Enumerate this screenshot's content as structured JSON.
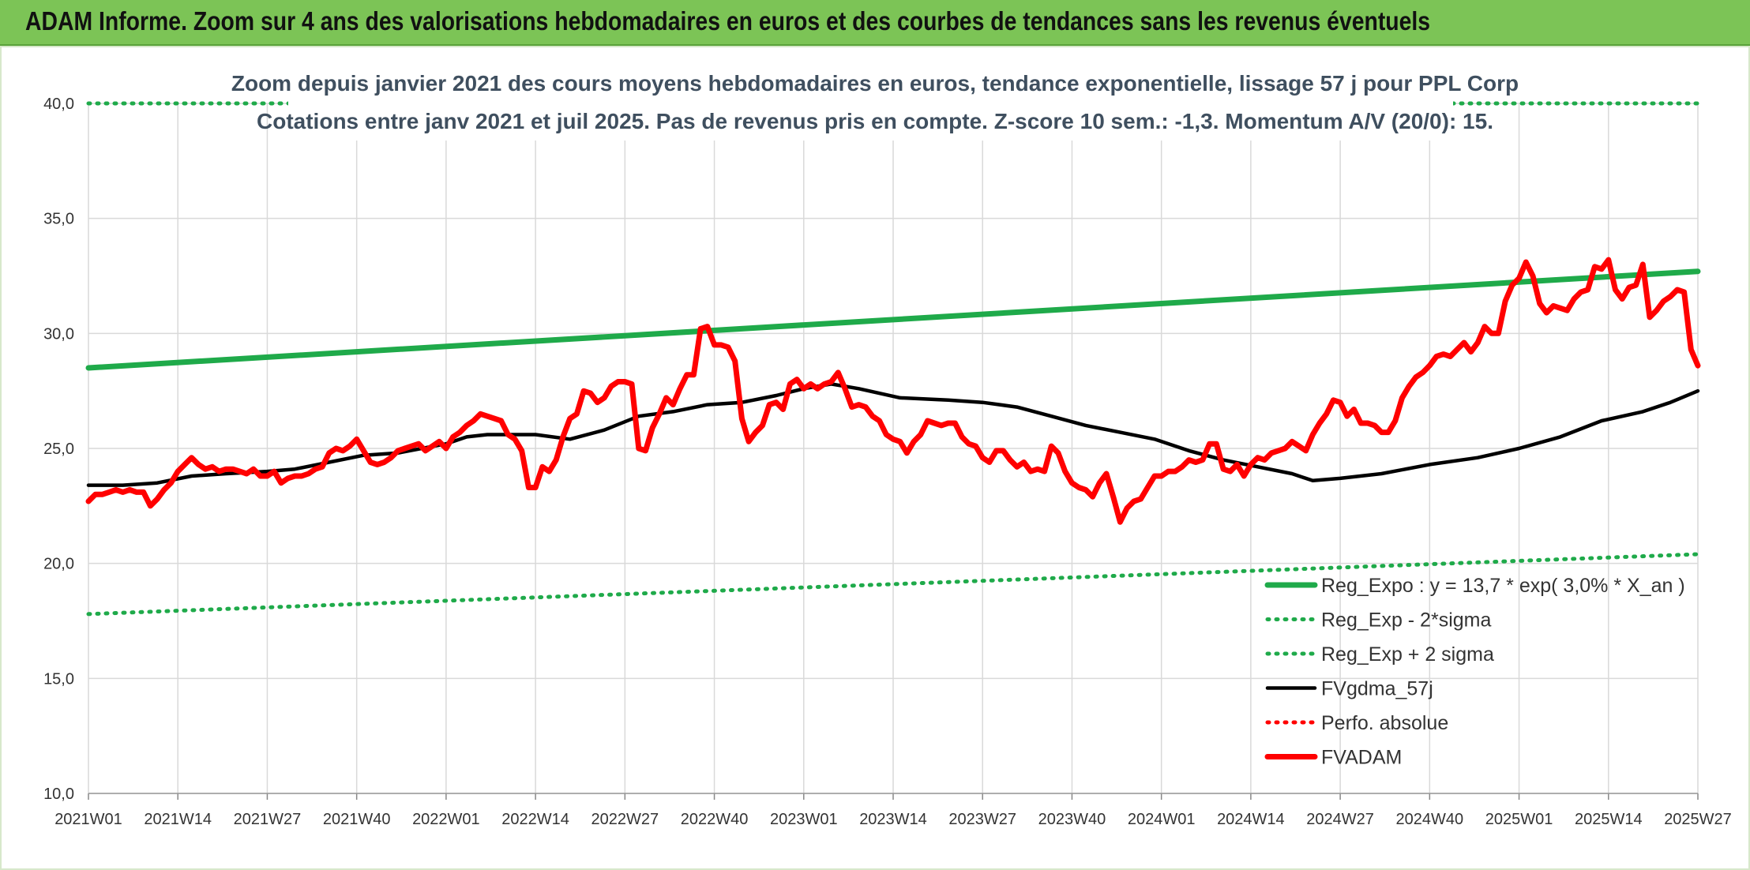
{
  "banner": {
    "title": "ADAM Informe. Zoom sur 4 ans des valorisations hebdomadaires en euros et des courbes de tendances sans les revenus éventuels"
  },
  "colors": {
    "banner": "#7cc456",
    "trend": "#1faa4a",
    "smoothed": "#000000",
    "price": "#ff0000",
    "grid": "#d9d9d9"
  },
  "chart_data": {
    "type": "line",
    "title": [
      "Zoom depuis janvier 2021 des cours moyens hebdomadaires en euros, tendance exponentielle, lissage 57 j pour PPL Corp",
      "Cotations entre janv 2021 et juil 2025. Pas de revenus pris en compte. Z-score 10 sem.: -1,3. Momentum A/V (20/0): 15."
    ],
    "ylim": [
      10,
      40
    ],
    "yticks": [
      "10,0",
      "15,0",
      "20,0",
      "25,0",
      "30,0",
      "35,0",
      "40,0"
    ],
    "xticks": [
      "2021W01",
      "2021W14",
      "2021W27",
      "2021W40",
      "2022W01",
      "2022W14",
      "2022W27",
      "2022W40",
      "2023W01",
      "2023W14",
      "2023W27",
      "2023W40",
      "2024W01",
      "2024W14",
      "2024W27",
      "2024W40",
      "2025W01",
      "2025W14",
      "2025W27"
    ],
    "x_range_weeks": [
      0,
      234
    ],
    "grid": true,
    "legend_position": "bottom-right",
    "series": [
      {
        "name": "Reg_Expo : y = 13,7 * exp( 3,0% *  X_an )",
        "style": "solid-thick",
        "color": "#1faa4a",
        "points": [
          [
            0,
            28.5
          ],
          [
            234,
            32.7
          ]
        ]
      },
      {
        "name": "Reg_Exp - 2*sigma",
        "style": "dotted",
        "color": "#1faa4a",
        "points": [
          [
            0,
            17.8
          ],
          [
            234,
            20.4
          ]
        ]
      },
      {
        "name": "Reg_Exp + 2 sigma",
        "style": "dotted",
        "color": "#1faa4a",
        "points": [
          [
            0,
            40.0
          ],
          [
            234,
            40.0
          ]
        ]
      },
      {
        "name": "FVgdma_57j",
        "style": "solid",
        "color": "#000000",
        "points": [
          [
            0,
            23.4
          ],
          [
            5,
            23.4
          ],
          [
            10,
            23.5
          ],
          [
            15,
            23.8
          ],
          [
            20,
            23.9
          ],
          [
            26,
            24.0
          ],
          [
            30,
            24.1
          ],
          [
            35,
            24.4
          ],
          [
            40,
            24.7
          ],
          [
            45,
            24.8
          ],
          [
            52,
            25.2
          ],
          [
            55,
            25.5
          ],
          [
            58,
            25.6
          ],
          [
            65,
            25.6
          ],
          [
            70,
            25.4
          ],
          [
            75,
            25.8
          ],
          [
            80,
            26.4
          ],
          [
            85,
            26.6
          ],
          [
            90,
            26.9
          ],
          [
            95,
            27.0
          ],
          [
            100,
            27.3
          ],
          [
            104,
            27.6
          ],
          [
            108,
            27.8
          ],
          [
            112,
            27.6
          ],
          [
            118,
            27.2
          ],
          [
            125,
            27.1
          ],
          [
            130,
            27.0
          ],
          [
            135,
            26.8
          ],
          [
            140,
            26.4
          ],
          [
            145,
            26.0
          ],
          [
            150,
            25.7
          ],
          [
            155,
            25.4
          ],
          [
            160,
            24.9
          ],
          [
            165,
            24.5
          ],
          [
            170,
            24.2
          ],
          [
            175,
            23.9
          ],
          [
            178,
            23.6
          ],
          [
            182,
            23.7
          ],
          [
            188,
            23.9
          ],
          [
            195,
            24.3
          ],
          [
            202,
            24.6
          ],
          [
            208,
            25.0
          ],
          [
            214,
            25.5
          ],
          [
            220,
            26.2
          ],
          [
            226,
            26.6
          ],
          [
            230,
            27.0
          ],
          [
            234,
            27.5
          ]
        ]
      },
      {
        "name": "Perfo. absolue",
        "style": "dotted",
        "color": "#ff0000",
        "points": []
      },
      {
        "name": "FVADAM",
        "style": "solid-thick",
        "color": "#ff0000",
        "points": [
          [
            0,
            22.7
          ],
          [
            1,
            23.0
          ],
          [
            2,
            23.0
          ],
          [
            3,
            23.1
          ],
          [
            4,
            23.2
          ],
          [
            5,
            23.1
          ],
          [
            6,
            23.2
          ],
          [
            7,
            23.1
          ],
          [
            8,
            23.1
          ],
          [
            9,
            22.5
          ],
          [
            10,
            22.8
          ],
          [
            11,
            23.2
          ],
          [
            12,
            23.5
          ],
          [
            13,
            24.0
          ],
          [
            14,
            24.3
          ],
          [
            15,
            24.6
          ],
          [
            16,
            24.3
          ],
          [
            17,
            24.1
          ],
          [
            18,
            24.2
          ],
          [
            19,
            24.0
          ],
          [
            20,
            24.1
          ],
          [
            21,
            24.1
          ],
          [
            22,
            24.0
          ],
          [
            23,
            23.9
          ],
          [
            24,
            24.1
          ],
          [
            25,
            23.8
          ],
          [
            26,
            23.8
          ],
          [
            27,
            24.0
          ],
          [
            28,
            23.5
          ],
          [
            29,
            23.7
          ],
          [
            30,
            23.8
          ],
          [
            31,
            23.8
          ],
          [
            32,
            23.9
          ],
          [
            33,
            24.1
          ],
          [
            34,
            24.2
          ],
          [
            35,
            24.8
          ],
          [
            36,
            25.0
          ],
          [
            37,
            24.9
          ],
          [
            38,
            25.1
          ],
          [
            39,
            25.4
          ],
          [
            40,
            24.9
          ],
          [
            41,
            24.4
          ],
          [
            42,
            24.3
          ],
          [
            43,
            24.4
          ],
          [
            44,
            24.6
          ],
          [
            45,
            24.9
          ],
          [
            46,
            25.0
          ],
          [
            47,
            25.1
          ],
          [
            48,
            25.2
          ],
          [
            49,
            24.9
          ],
          [
            50,
            25.1
          ],
          [
            51,
            25.3
          ],
          [
            52,
            25.0
          ],
          [
            53,
            25.5
          ],
          [
            54,
            25.7
          ],
          [
            55,
            26.0
          ],
          [
            56,
            26.2
          ],
          [
            57,
            26.5
          ],
          [
            58,
            26.4
          ],
          [
            59,
            26.3
          ],
          [
            60,
            26.2
          ],
          [
            61,
            25.6
          ],
          [
            62,
            25.4
          ],
          [
            63,
            24.9
          ],
          [
            64,
            23.3
          ],
          [
            65,
            23.3
          ],
          [
            66,
            24.2
          ],
          [
            67,
            24.0
          ],
          [
            68,
            24.5
          ],
          [
            69,
            25.5
          ],
          [
            70,
            26.3
          ],
          [
            71,
            26.5
          ],
          [
            72,
            27.5
          ],
          [
            73,
            27.4
          ],
          [
            74,
            27.0
          ],
          [
            75,
            27.2
          ],
          [
            76,
            27.7
          ],
          [
            77,
            27.9
          ],
          [
            78,
            27.9
          ],
          [
            79,
            27.8
          ],
          [
            80,
            25.0
          ],
          [
            81,
            24.9
          ],
          [
            82,
            25.9
          ],
          [
            83,
            26.5
          ],
          [
            84,
            27.2
          ],
          [
            85,
            26.9
          ],
          [
            86,
            27.6
          ],
          [
            87,
            28.2
          ],
          [
            88,
            28.2
          ],
          [
            89,
            30.2
          ],
          [
            90,
            30.3
          ],
          [
            91,
            29.5
          ],
          [
            92,
            29.5
          ],
          [
            93,
            29.4
          ],
          [
            94,
            28.8
          ],
          [
            95,
            26.3
          ],
          [
            96,
            25.3
          ],
          [
            97,
            25.7
          ],
          [
            98,
            26.0
          ],
          [
            99,
            26.9
          ],
          [
            100,
            27.0
          ],
          [
            101,
            26.7
          ],
          [
            102,
            27.8
          ],
          [
            103,
            28.0
          ],
          [
            104,
            27.6
          ],
          [
            105,
            27.8
          ],
          [
            106,
            27.6
          ],
          [
            107,
            27.8
          ],
          [
            108,
            27.9
          ],
          [
            109,
            28.3
          ],
          [
            110,
            27.6
          ],
          [
            111,
            26.8
          ],
          [
            112,
            26.9
          ],
          [
            113,
            26.8
          ],
          [
            114,
            26.4
          ],
          [
            115,
            26.2
          ],
          [
            116,
            25.6
          ],
          [
            117,
            25.4
          ],
          [
            118,
            25.3
          ],
          [
            119,
            24.8
          ],
          [
            120,
            25.3
          ],
          [
            121,
            25.6
          ],
          [
            122,
            26.2
          ],
          [
            123,
            26.1
          ],
          [
            124,
            26.0
          ],
          [
            125,
            26.1
          ],
          [
            126,
            26.1
          ],
          [
            127,
            25.5
          ],
          [
            128,
            25.2
          ],
          [
            129,
            25.1
          ],
          [
            130,
            24.6
          ],
          [
            131,
            24.4
          ],
          [
            132,
            24.9
          ],
          [
            133,
            24.9
          ],
          [
            134,
            24.5
          ],
          [
            135,
            24.2
          ],
          [
            136,
            24.4
          ],
          [
            137,
            24.0
          ],
          [
            138,
            24.1
          ],
          [
            139,
            24.0
          ],
          [
            140,
            25.1
          ],
          [
            141,
            24.8
          ],
          [
            142,
            24.0
          ],
          [
            143,
            23.5
          ],
          [
            144,
            23.3
          ],
          [
            145,
            23.2
          ],
          [
            146,
            22.9
          ],
          [
            147,
            23.5
          ],
          [
            148,
            23.9
          ],
          [
            149,
            22.9
          ],
          [
            150,
            21.8
          ],
          [
            151,
            22.4
          ],
          [
            152,
            22.7
          ],
          [
            153,
            22.8
          ],
          [
            154,
            23.3
          ],
          [
            155,
            23.8
          ],
          [
            156,
            23.8
          ],
          [
            157,
            24.0
          ],
          [
            158,
            24.0
          ],
          [
            159,
            24.2
          ],
          [
            160,
            24.5
          ],
          [
            161,
            24.4
          ],
          [
            162,
            24.5
          ],
          [
            163,
            25.2
          ],
          [
            164,
            25.2
          ],
          [
            165,
            24.1
          ],
          [
            166,
            24.0
          ],
          [
            167,
            24.3
          ],
          [
            168,
            23.8
          ],
          [
            169,
            24.3
          ],
          [
            170,
            24.6
          ],
          [
            171,
            24.5
          ],
          [
            172,
            24.8
          ],
          [
            173,
            24.9
          ],
          [
            174,
            25.0
          ],
          [
            175,
            25.3
          ],
          [
            176,
            25.1
          ],
          [
            177,
            24.9
          ],
          [
            178,
            25.6
          ],
          [
            179,
            26.1
          ],
          [
            180,
            26.5
          ],
          [
            181,
            27.1
          ],
          [
            182,
            27.0
          ],
          [
            183,
            26.4
          ],
          [
            184,
            26.7
          ],
          [
            185,
            26.1
          ],
          [
            186,
            26.1
          ],
          [
            187,
            26.0
          ],
          [
            188,
            25.7
          ],
          [
            189,
            25.7
          ],
          [
            190,
            26.2
          ],
          [
            191,
            27.2
          ],
          [
            192,
            27.7
          ],
          [
            193,
            28.1
          ],
          [
            194,
            28.3
          ],
          [
            195,
            28.6
          ],
          [
            196,
            29.0
          ],
          [
            197,
            29.1
          ],
          [
            198,
            29.0
          ],
          [
            199,
            29.3
          ],
          [
            200,
            29.6
          ],
          [
            201,
            29.2
          ],
          [
            202,
            29.6
          ],
          [
            203,
            30.3
          ],
          [
            204,
            30.0
          ],
          [
            205,
            30.0
          ],
          [
            206,
            31.4
          ],
          [
            207,
            32.1
          ],
          [
            208,
            32.4
          ],
          [
            209,
            33.1
          ],
          [
            210,
            32.5
          ],
          [
            211,
            31.3
          ],
          [
            212,
            30.9
          ],
          [
            213,
            31.2
          ],
          [
            214,
            31.1
          ],
          [
            215,
            31.0
          ],
          [
            216,
            31.5
          ],
          [
            217,
            31.8
          ],
          [
            218,
            31.9
          ],
          [
            219,
            32.9
          ],
          [
            220,
            32.8
          ],
          [
            221,
            33.2
          ],
          [
            222,
            31.9
          ],
          [
            223,
            31.5
          ],
          [
            224,
            32.0
          ],
          [
            225,
            32.1
          ],
          [
            226,
            33.0
          ],
          [
            227,
            30.7
          ],
          [
            228,
            31.0
          ],
          [
            229,
            31.4
          ],
          [
            230,
            31.6
          ],
          [
            231,
            31.9
          ],
          [
            232,
            31.8
          ],
          [
            233,
            29.3
          ],
          [
            234,
            28.6
          ]
        ]
      }
    ]
  }
}
